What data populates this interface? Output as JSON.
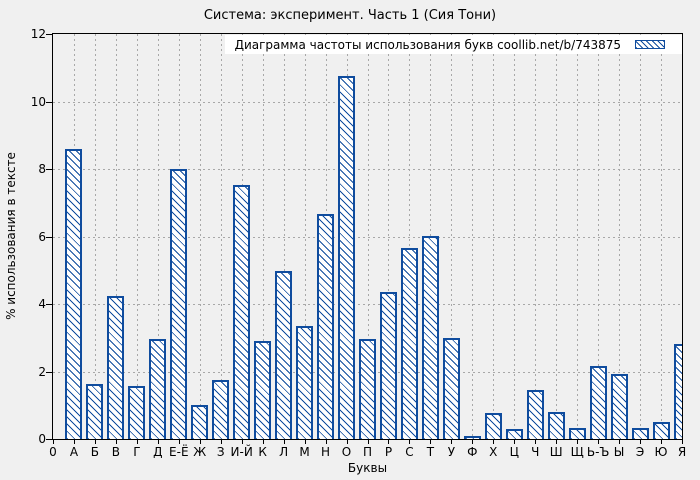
{
  "chart_data": {
    "type": "bar",
    "title": "Система: эксперимент. Часть 1 (Сия Тони)",
    "legend": "Диаграмма частоты использования букв coollib.net/b/743875",
    "xlabel": "Буквы",
    "ylabel": "% использования в тексте",
    "ylim": [
      0,
      12
    ],
    "yticks": [
      0,
      2,
      4,
      6,
      8,
      10,
      12
    ],
    "grid": true,
    "legend_position": "top-right-inside",
    "bar_style": "white fill with blue diagonal hatch and blue outline",
    "categories": [
      "0",
      "А",
      "Б",
      "В",
      "Г",
      "Д",
      "Е-Ё",
      "Ж",
      "З",
      "И-Й",
      "К",
      "Л",
      "М",
      "Н",
      "О",
      "П",
      "Р",
      "С",
      "Т",
      "У",
      "Ф",
      "Х",
      "Ц",
      "Ч",
      "Ш",
      "Щ",
      "Ь-Ъ",
      "Ы",
      "Э",
      "Ю",
      "Я"
    ],
    "values": [
      null,
      8.6,
      1.63,
      4.25,
      1.58,
      2.95,
      8.0,
      1.02,
      1.74,
      7.53,
      2.9,
      4.97,
      3.36,
      6.67,
      10.75,
      2.97,
      4.37,
      5.65,
      6.03,
      2.98,
      0.1,
      0.76,
      0.3,
      1.45,
      0.8,
      0.33,
      2.16,
      1.92,
      0.33,
      0.51,
      2.81
    ],
    "colors": {
      "bar": "#0f4c9e",
      "figure_background": "#f0f0f0",
      "grid": "#a8a8a8",
      "legend_background": "#ffffff",
      "text": "#000000"
    }
  }
}
